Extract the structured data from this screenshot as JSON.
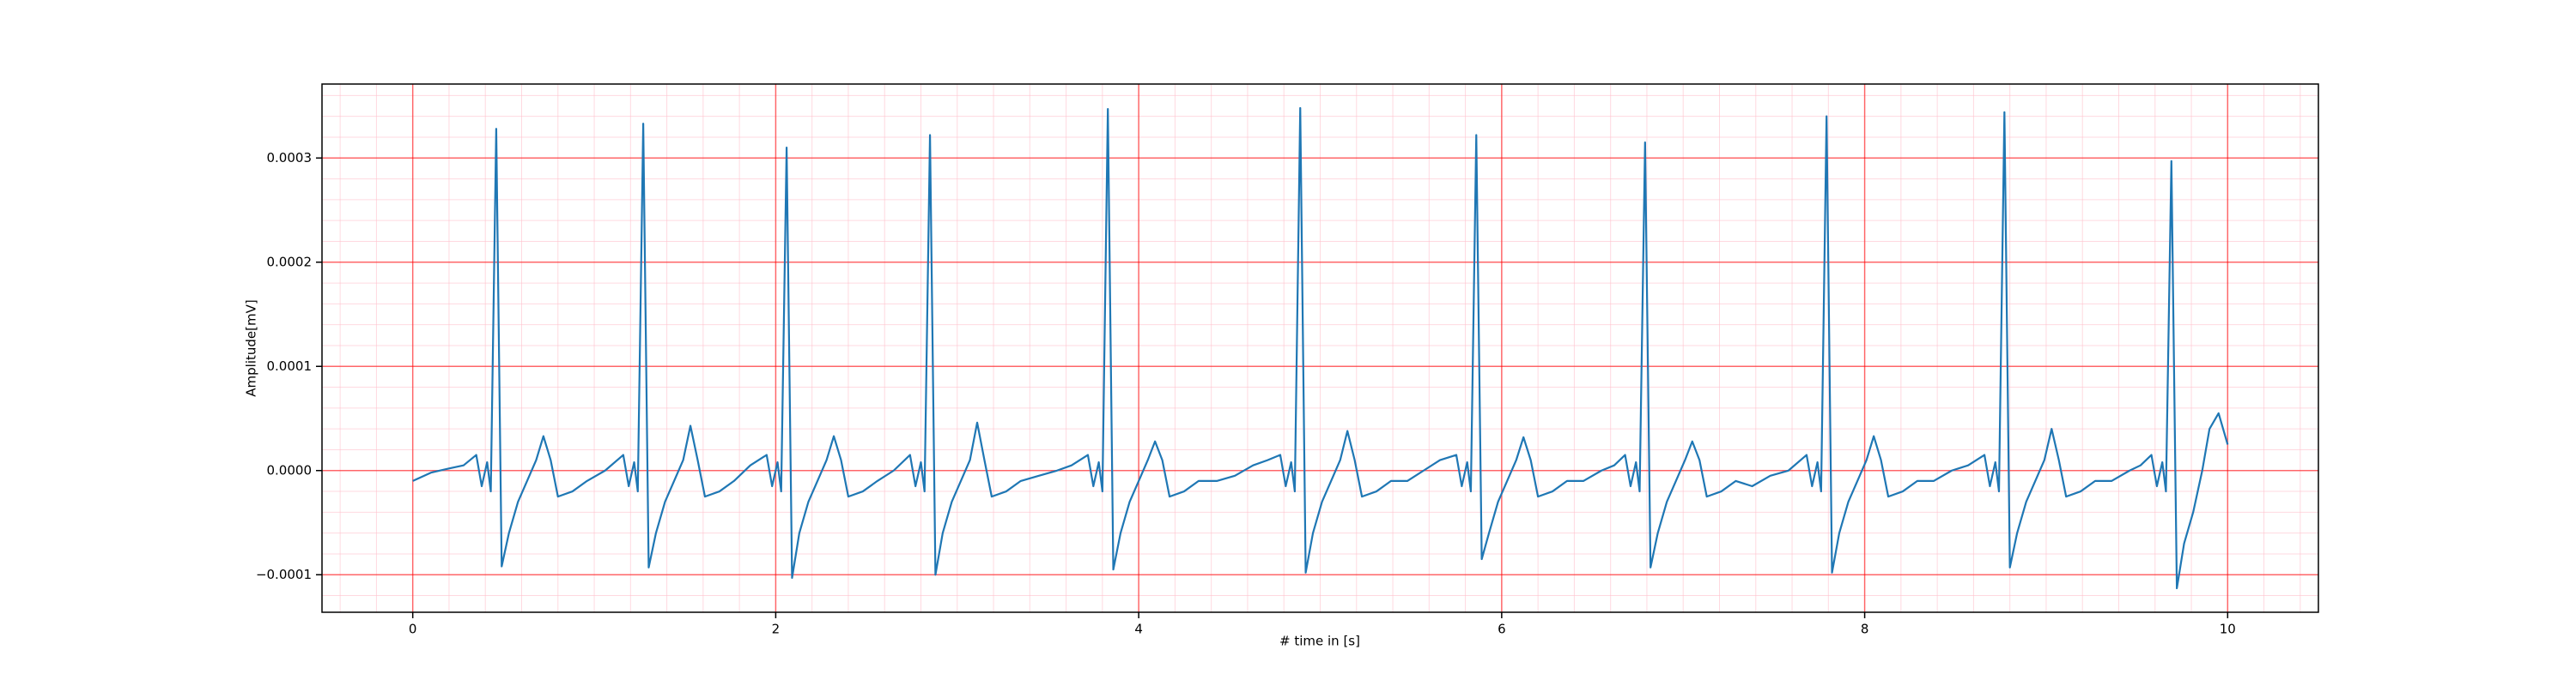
{
  "chart_data": {
    "type": "line",
    "xlabel": "# time in [s]",
    "ylabel": "Amplitude[mV]",
    "color": "#1f77b4",
    "xlim": [
      -0.5,
      10.5
    ],
    "ylim": [
      -0.000136,
      0.000371
    ],
    "xticks": [
      0,
      2,
      4,
      6,
      8,
      10
    ],
    "yticks": [
      {
        "value": -0.0001,
        "label": "−0.0001"
      },
      {
        "value": 0,
        "label": "0.0000"
      },
      {
        "value": 0.0001,
        "label": "0.0001"
      },
      {
        "value": 0.0002,
        "label": "0.0002"
      },
      {
        "value": 0.0003,
        "label": "0.0003"
      }
    ],
    "grid": true,
    "minor_grid": true,
    "grid_color": "#ff0000",
    "minor_grid_color": "#ffc0cb",
    "x": [
      0,
      0.1,
      0.2,
      0.28,
      0.35,
      0.38,
      0.41,
      0.43,
      0.46,
      0.49,
      0.53,
      0.58,
      0.63,
      0.68,
      0.72,
      0.76,
      0.8,
      0.88,
      0.96,
      1.06,
      1.16,
      1.19,
      1.22,
      1.24,
      1.27,
      1.3,
      1.34,
      1.39,
      1.44,
      1.49,
      1.53,
      1.57,
      1.61,
      1.69,
      1.77,
      1.86,
      1.95,
      1.98,
      2.01,
      2.03,
      2.06,
      2.09,
      2.13,
      2.18,
      2.23,
      2.28,
      2.32,
      2.36,
      2.4,
      2.48,
      2.56,
      2.65,
      2.74,
      2.77,
      2.8,
      2.82,
      2.85,
      2.88,
      2.92,
      2.97,
      3.02,
      3.07,
      3.11,
      3.15,
      3.19,
      3.27,
      3.35,
      3.45,
      3.55,
      3.63,
      3.72,
      3.75,
      3.78,
      3.8,
      3.83,
      3.86,
      3.9,
      3.95,
      4.0,
      4.05,
      4.09,
      4.13,
      4.17,
      4.25,
      4.33,
      4.43,
      4.53,
      4.63,
      4.71,
      4.78,
      4.81,
      4.84,
      4.86,
      4.89,
      4.92,
      4.96,
      5.01,
      5.06,
      5.11,
      5.15,
      5.19,
      5.23,
      5.31,
      5.39,
      5.48,
      5.57,
      5.66,
      5.75,
      5.78,
      5.81,
      5.83,
      5.86,
      5.89,
      5.93,
      5.98,
      6.03,
      6.08,
      6.12,
      6.16,
      6.2,
      6.28,
      6.36,
      6.45,
      6.55,
      6.62,
      6.68,
      6.71,
      6.74,
      6.76,
      6.79,
      6.82,
      6.86,
      6.91,
      6.96,
      7.01,
      7.05,
      7.09,
      7.13,
      7.21,
      7.29,
      7.38,
      7.48,
      7.58,
      7.68,
      7.71,
      7.74,
      7.76,
      7.79,
      7.82,
      7.86,
      7.91,
      7.96,
      8.01,
      8.05,
      8.09,
      8.13,
      8.21,
      8.29,
      8.38,
      8.48,
      8.57,
      8.66,
      8.69,
      8.72,
      8.74,
      8.77,
      8.8,
      8.84,
      8.89,
      8.94,
      8.99,
      9.03,
      9.07,
      9.11,
      9.19,
      9.27,
      9.36,
      9.46,
      9.52,
      9.58,
      9.61,
      9.64,
      9.66,
      9.69,
      9.72,
      9.76,
      9.81,
      9.86,
      9.9,
      9.95,
      10.0
    ],
    "values": [
      -1e-05,
      -2e-06,
      2e-06,
      5e-06,
      1.5e-05,
      -1.5e-05,
      8e-06,
      -2e-05,
      0.000328,
      -9.2e-05,
      -6e-05,
      -3e-05,
      -1e-05,
      1e-05,
      3.3e-05,
      1e-05,
      -2.5e-05,
      -2e-05,
      -1e-05,
      0,
      1.5e-05,
      -1.5e-05,
      8e-06,
      -2e-05,
      0.000333,
      -9.3e-05,
      -6e-05,
      -3e-05,
      -1e-05,
      1e-05,
      4.3e-05,
      1e-05,
      -2.5e-05,
      -2e-05,
      -1e-05,
      5e-06,
      1.5e-05,
      -1.5e-05,
      8e-06,
      -2e-05,
      0.00031,
      -0.000103,
      -6e-05,
      -3e-05,
      -1e-05,
      1e-05,
      3.3e-05,
      1e-05,
      -2.5e-05,
      -2e-05,
      -1e-05,
      0,
      1.5e-05,
      -1.5e-05,
      8e-06,
      -2e-05,
      0.000322,
      -0.0001,
      -6e-05,
      -3e-05,
      -1e-05,
      1e-05,
      4.6e-05,
      1e-05,
      -2.5e-05,
      -2e-05,
      -1e-05,
      -5e-06,
      0,
      5e-06,
      1.5e-05,
      -1.5e-05,
      8e-06,
      -2e-05,
      0.000347,
      -9.5e-05,
      -6e-05,
      -3e-05,
      -1e-05,
      1e-05,
      2.8e-05,
      1e-05,
      -2.5e-05,
      -2e-05,
      -1e-05,
      -1e-05,
      -5e-06,
      5e-06,
      1e-05,
      1.5e-05,
      -1.5e-05,
      8e-06,
      -2e-05,
      0.000348,
      -9.8e-05,
      -6e-05,
      -3e-05,
      -1e-05,
      1e-05,
      3.8e-05,
      1e-05,
      -2.5e-05,
      -2e-05,
      -1e-05,
      -1e-05,
      0,
      1e-05,
      1.5e-05,
      -1.5e-05,
      8e-06,
      -2e-05,
      0.000322,
      -8.5e-05,
      -6e-05,
      -3e-05,
      -1e-05,
      1e-05,
      3.2e-05,
      1e-05,
      -2.5e-05,
      -2e-05,
      -1e-05,
      -1e-05,
      0,
      5e-06,
      1.5e-05,
      -1.5e-05,
      8e-06,
      -2e-05,
      0.000315,
      -9.3e-05,
      -6e-05,
      -3e-05,
      -1e-05,
      1e-05,
      2.8e-05,
      1e-05,
      -2.5e-05,
      -2e-05,
      -1e-05,
      -1.5e-05,
      -5e-06,
      0,
      1.5e-05,
      -1.5e-05,
      8e-06,
      -2e-05,
      0.00034,
      -9.8e-05,
      -6e-05,
      -3e-05,
      -1e-05,
      1e-05,
      3.3e-05,
      1e-05,
      -2.5e-05,
      -2e-05,
      -1e-05,
      -1e-05,
      0,
      5e-06,
      1.5e-05,
      -1.5e-05,
      8e-06,
      -2e-05,
      0.000344,
      -9.3e-05,
      -6e-05,
      -3e-05,
      -1e-05,
      1e-05,
      4e-05,
      1e-05,
      -2.5e-05,
      -2e-05,
      -1e-05,
      -1e-05,
      0,
      5e-06,
      1.5e-05,
      -1.5e-05,
      8e-06,
      -2e-05,
      0.000297,
      -0.000113,
      -7e-05,
      -4e-05,
      0,
      4e-05,
      5.5e-05,
      2.5e-05
    ]
  }
}
